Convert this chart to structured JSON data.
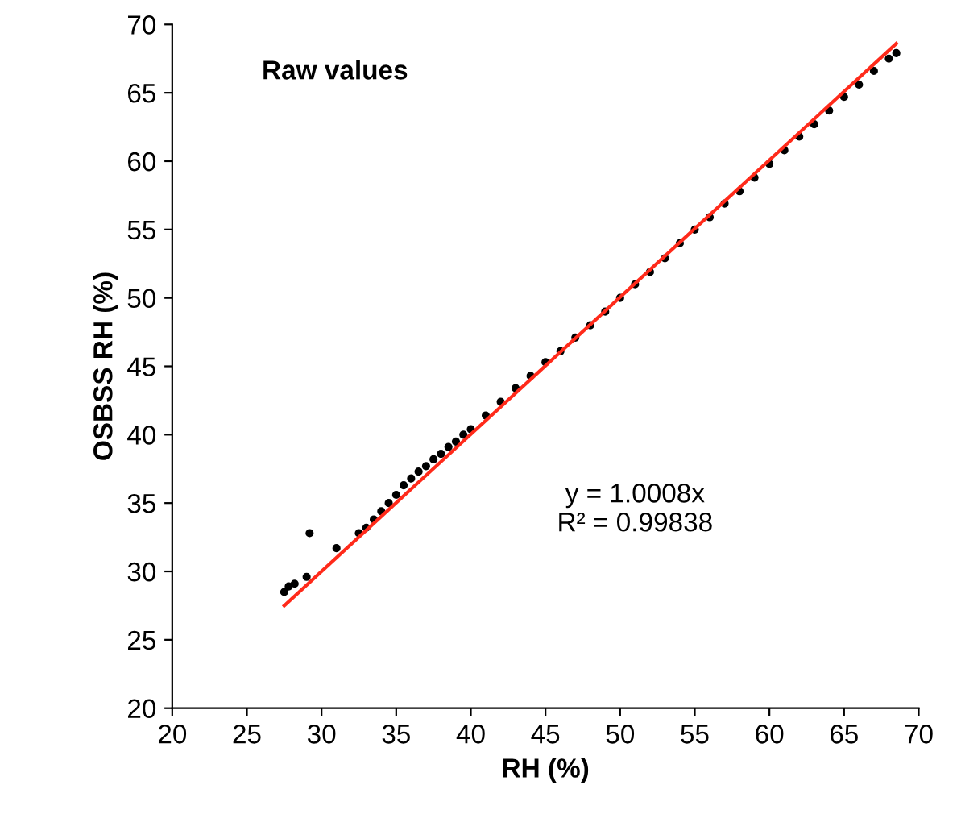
{
  "chart_data": {
    "type": "scatter",
    "xlabel": "RH (%)",
    "ylabel": "OSBSS RH (%)",
    "annotations": [
      "Raw values",
      "y = 1.0008x\nR² = 0.99838"
    ],
    "xlim": [
      20,
      70
    ],
    "ylim": [
      20,
      70
    ],
    "xticks": [
      20,
      25,
      30,
      35,
      40,
      45,
      50,
      55,
      60,
      65,
      70
    ],
    "yticks": [
      20,
      25,
      30,
      35,
      40,
      45,
      50,
      55,
      60,
      65,
      70
    ],
    "grid": false,
    "legend": false,
    "marker": "circle",
    "series": [
      {
        "color": "#000000",
        "x": [
          27.5,
          27.8,
          28.2,
          29.0,
          29.2,
          31.0,
          32.5,
          33.0,
          33.5,
          34.0,
          34.5,
          35.0,
          35.5,
          36.0,
          36.5,
          37.0,
          37.5,
          38.0,
          38.5,
          39.0,
          39.5,
          40.0,
          41.0,
          42.0,
          43.0,
          44.0,
          45.0,
          46.0,
          47.0,
          48.0,
          49.0,
          50.0,
          51.0,
          52.0,
          53.0,
          54.0,
          55.0,
          56.0,
          57.0,
          58.0,
          59.0,
          60.0,
          61.0,
          62.0,
          63.0,
          64.0,
          65.0,
          66.0,
          67.0,
          68.0,
          68.5
        ],
        "values": [
          28.5,
          28.9,
          29.1,
          29.6,
          32.8,
          31.7,
          32.8,
          33.2,
          33.8,
          34.4,
          35.0,
          35.6,
          36.3,
          36.8,
          37.3,
          37.7,
          38.2,
          38.6,
          39.1,
          39.5,
          40.0,
          40.4,
          41.4,
          42.4,
          43.4,
          44.3,
          45.3,
          46.1,
          47.1,
          48.0,
          49.0,
          50.0,
          51.0,
          51.9,
          52.9,
          54.0,
          55.0,
          55.9,
          56.9,
          57.8,
          58.8,
          59.8,
          60.8,
          61.8,
          62.7,
          63.7,
          64.7,
          65.6,
          66.6,
          67.5,
          67.9
        ]
      },
      {
        "type": "line",
        "color": "#ff2a1a",
        "x": [
          27.5,
          68.5
        ],
        "values": [
          27.5,
          68.6
        ],
        "marker": "none",
        "line_style": "solid"
      }
    ]
  }
}
